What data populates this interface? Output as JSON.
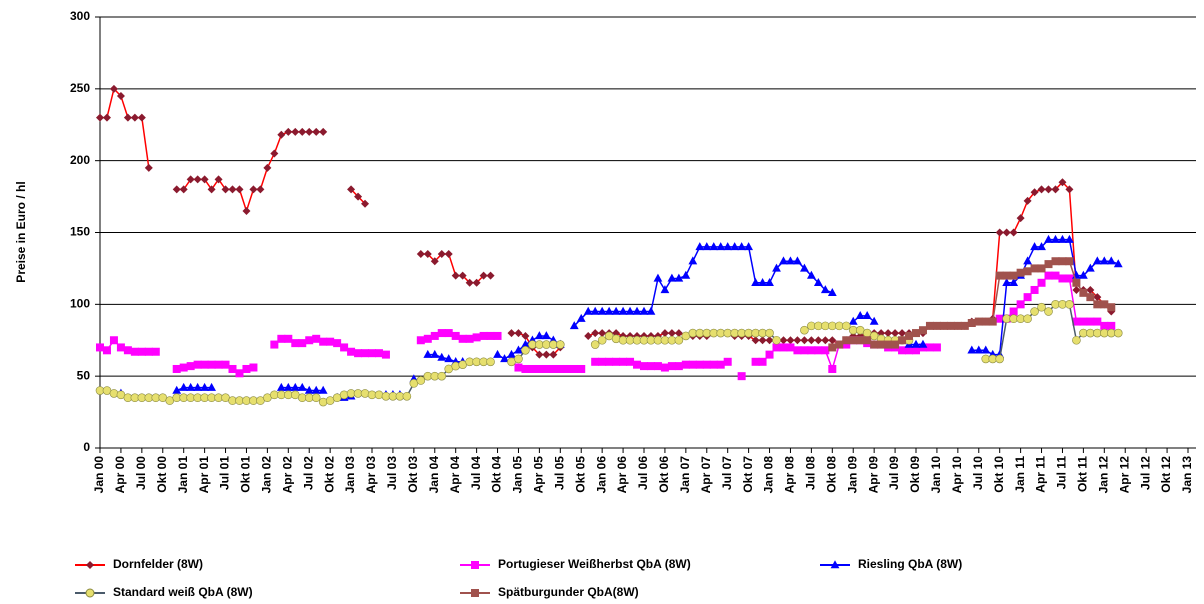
{
  "chart_data": {
    "type": "line",
    "ylabel": "Preise in Euro / hl",
    "ylim": [
      0,
      300
    ],
    "yticks": [
      0,
      50,
      100,
      150,
      200,
      250,
      300
    ],
    "grid": true,
    "legend": "bottom",
    "categories": [
      "Jan 00",
      null,
      null,
      "Apr 00",
      null,
      null,
      "Jul 00",
      null,
      null,
      "Okt 00",
      null,
      null,
      "Jan 01",
      null,
      null,
      "Apr 01",
      null,
      null,
      "Jul 01",
      null,
      null,
      "Okt 01",
      null,
      null,
      "Jan 02",
      null,
      null,
      "Apr 02",
      null,
      null,
      "Jul 02",
      null,
      null,
      "Okt 02",
      null,
      null,
      "Jan 03",
      null,
      null,
      "Apr 03",
      null,
      null,
      "Jul 03",
      null,
      null,
      "Okt 03",
      null,
      null,
      "Jan 04",
      null,
      null,
      "Apr 04",
      null,
      null,
      "Jul 04",
      null,
      null,
      "Okt 04",
      null,
      null,
      "Jan 05",
      null,
      null,
      "Apr 05",
      null,
      null,
      "Jul 05",
      null,
      null,
      "Okt 05",
      null,
      null,
      "Jan 06",
      null,
      null,
      "Apr 06",
      null,
      null,
      "Jul 06",
      null,
      null,
      "Okt 06",
      null,
      null,
      "Jan 07",
      null,
      null,
      "Apr 07",
      null,
      null,
      "Jul 07",
      null,
      null,
      "Okt 07",
      null,
      null,
      "Jan 08",
      null,
      null,
      "Apr 08",
      null,
      null,
      "Jul 08",
      null,
      null,
      "Okt 08",
      null,
      null,
      "Jan 09",
      null,
      null,
      "Apr 09",
      null,
      null,
      "Jul 09",
      null,
      null,
      "Okt 09",
      null,
      null,
      "Jan 10",
      null,
      null,
      "Apr 10",
      null,
      null,
      "Jul 10",
      null,
      null,
      "Okt 10",
      null,
      null,
      "Jan 11",
      null,
      null,
      "Apr 11",
      null,
      null,
      "Jul 11",
      null,
      null,
      "Okt 11",
      null,
      null,
      "Jan 12",
      null,
      null,
      "Apr 12",
      null,
      null,
      "Jul 12",
      null,
      null,
      "Okt 12",
      null,
      null,
      "Jan 13"
    ],
    "series": [
      {
        "name": "Dornfelder (8W)",
        "color": "#ff0000",
        "marker": "diamond",
        "marker_color": "#8b1a2e",
        "values": [
          230,
          230,
          250,
          245,
          230,
          230,
          230,
          195,
          null,
          null,
          null,
          180,
          180,
          187,
          187,
          187,
          180,
          187,
          180,
          180,
          180,
          165,
          180,
          180,
          195,
          205,
          218,
          220,
          220,
          220,
          220,
          220,
          220,
          null,
          null,
          null,
          180,
          175,
          170,
          null,
          null,
          null,
          null,
          null,
          null,
          null,
          135,
          135,
          130,
          135,
          135,
          120,
          120,
          115,
          115,
          120,
          120,
          null,
          null,
          80,
          80,
          78,
          70,
          65,
          65,
          65,
          70,
          null,
          null,
          null,
          78,
          80,
          80,
          80,
          80,
          78,
          78,
          78,
          78,
          78,
          78,
          80,
          80,
          80,
          78,
          78,
          78,
          78,
          80,
          80,
          80,
          78,
          78,
          78,
          75,
          75,
          75,
          75,
          75,
          75,
          75,
          75,
          75,
          75,
          75,
          75,
          72,
          75,
          78,
          78,
          80,
          80,
          80,
          80,
          80,
          80,
          80,
          80,
          80,
          85,
          85,
          85,
          85,
          85,
          85,
          88,
          88,
          88,
          90,
          150,
          150,
          150,
          160,
          172,
          178,
          180,
          180,
          180,
          185,
          180,
          110,
          110,
          110,
          105,
          100,
          95,
          null,
          null,
          null,
          null,
          null,
          null,
          null,
          null,
          null,
          null,
          null
        ]
      },
      {
        "name": "Portugieser Weißherbst QbA (8W)",
        "color": "#ff00ff",
        "marker": "square",
        "marker_color": "#ff00ff",
        "values": [
          70,
          68,
          75,
          70,
          68,
          67,
          67,
          67,
          67,
          null,
          null,
          55,
          56,
          57,
          58,
          58,
          58,
          58,
          58,
          55,
          52,
          55,
          56,
          null,
          null,
          72,
          76,
          76,
          73,
          73,
          75,
          76,
          74,
          74,
          73,
          70,
          67,
          66,
          66,
          66,
          66,
          65,
          null,
          null,
          null,
          null,
          75,
          76,
          78,
          80,
          80,
          78,
          76,
          76,
          77,
          78,
          78,
          78,
          null,
          null,
          56,
          55,
          55,
          55,
          55,
          55,
          55,
          55,
          55,
          55,
          null,
          60,
          60,
          60,
          60,
          60,
          60,
          58,
          57,
          57,
          57,
          56,
          57,
          57,
          58,
          58,
          58,
          58,
          58,
          58,
          60,
          null,
          50,
          null,
          60,
          60,
          65,
          70,
          70,
          70,
          68,
          68,
          68,
          68,
          68,
          55,
          72,
          72,
          75,
          75,
          73,
          72,
          72,
          70,
          70,
          68,
          68,
          68,
          70,
          70,
          70,
          null,
          null,
          null,
          null,
          null,
          null,
          null,
          null,
          90,
          90,
          95,
          100,
          105,
          110,
          115,
          120,
          120,
          118,
          118,
          88,
          88,
          88,
          88,
          85,
          85,
          null,
          null,
          null,
          null,
          null,
          null,
          null,
          null,
          null,
          null,
          null
        ]
      },
      {
        "name": "Riesling QbA (8W)",
        "color": "#0000ff",
        "marker": "triangle",
        "marker_color": "#0000ff",
        "values": [
          null,
          null,
          null,
          38,
          null,
          null,
          null,
          null,
          null,
          null,
          null,
          40,
          42,
          42,
          42,
          42,
          42,
          null,
          null,
          null,
          null,
          null,
          null,
          null,
          null,
          null,
          42,
          42,
          42,
          42,
          40,
          40,
          40,
          null,
          35,
          35,
          36,
          null,
          null,
          null,
          null,
          37,
          37,
          37,
          null,
          48,
          null,
          65,
          65,
          63,
          62,
          60,
          60,
          null,
          null,
          null,
          null,
          65,
          62,
          65,
          68,
          72,
          75,
          78,
          78,
          75,
          72,
          null,
          85,
          90,
          95,
          95,
          95,
          95,
          95,
          95,
          95,
          95,
          95,
          95,
          118,
          110,
          118,
          118,
          120,
          130,
          140,
          140,
          140,
          140,
          140,
          140,
          140,
          140,
          115,
          115,
          115,
          125,
          130,
          130,
          130,
          125,
          120,
          115,
          110,
          108,
          null,
          null,
          88,
          92,
          92,
          88,
          null,
          null,
          null,
          null,
          72,
          72,
          72,
          null,
          null,
          null,
          null,
          null,
          null,
          68,
          68,
          68,
          65,
          65,
          115,
          115,
          120,
          130,
          140,
          140,
          145,
          145,
          145,
          145,
          120,
          120,
          125,
          130,
          130,
          130,
          128,
          null,
          null,
          null,
          null,
          null,
          null,
          null,
          null,
          null,
          null
        ]
      },
      {
        "name": "Standard weiß QbA (8W)",
        "color": "#4a5a6a",
        "marker": "circle",
        "marker_color": "#e6df6e",
        "values": [
          40,
          40,
          38,
          37,
          35,
          35,
          35,
          35,
          35,
          35,
          33,
          35,
          35,
          35,
          35,
          35,
          35,
          35,
          35,
          33,
          33,
          33,
          33,
          33,
          35,
          37,
          37,
          37,
          37,
          35,
          35,
          35,
          32,
          33,
          35,
          37,
          38,
          38,
          38,
          37,
          37,
          36,
          36,
          36,
          36,
          45,
          47,
          50,
          50,
          50,
          55,
          57,
          58,
          60,
          60,
          60,
          60,
          null,
          null,
          60,
          62,
          68,
          72,
          72,
          72,
          72,
          72,
          null,
          null,
          null,
          null,
          72,
          75,
          78,
          76,
          75,
          75,
          75,
          75,
          75,
          75,
          75,
          75,
          75,
          78,
          80,
          80,
          80,
          80,
          80,
          80,
          80,
          80,
          80,
          80,
          80,
          80,
          75,
          null,
          null,
          null,
          82,
          85,
          85,
          85,
          85,
          85,
          85,
          82,
          82,
          80,
          78,
          76,
          75,
          75,
          75,
          75,
          null,
          null,
          null,
          null,
          null,
          null,
          null,
          null,
          null,
          null,
          62,
          62,
          62,
          90,
          90,
          90,
          90,
          95,
          98,
          95,
          100,
          100,
          100,
          75,
          80,
          80,
          80,
          80,
          80,
          80,
          null,
          null,
          null,
          null,
          null,
          null,
          null,
          null,
          null,
          null
        ]
      },
      {
        "name": "Spätburgunder QbA(8W)",
        "color": "#a0524d",
        "marker": "square",
        "marker_color": "#a0524d",
        "values": [
          null,
          null,
          null,
          null,
          null,
          null,
          null,
          null,
          null,
          null,
          null,
          null,
          null,
          null,
          null,
          null,
          null,
          null,
          null,
          null,
          null,
          null,
          null,
          null,
          null,
          null,
          null,
          null,
          null,
          null,
          null,
          null,
          null,
          null,
          null,
          null,
          null,
          null,
          null,
          null,
          null,
          null,
          null,
          null,
          null,
          null,
          null,
          null,
          null,
          null,
          null,
          null,
          null,
          null,
          null,
          null,
          null,
          null,
          null,
          null,
          null,
          null,
          null,
          null,
          null,
          null,
          null,
          null,
          null,
          null,
          null,
          null,
          null,
          null,
          null,
          null,
          null,
          null,
          null,
          null,
          null,
          null,
          null,
          null,
          null,
          null,
          null,
          null,
          null,
          null,
          null,
          null,
          null,
          null,
          null,
          null,
          null,
          null,
          null,
          null,
          null,
          null,
          null,
          null,
          null,
          70,
          72,
          75,
          75,
          75,
          75,
          72,
          72,
          72,
          72,
          75,
          78,
          80,
          82,
          85,
          85,
          85,
          85,
          85,
          85,
          87,
          88,
          88,
          88,
          120,
          120,
          120,
          122,
          123,
          125,
          125,
          128,
          130,
          130,
          130,
          115,
          108,
          105,
          100,
          100,
          98,
          null,
          null,
          null,
          null,
          null,
          null,
          null,
          null,
          null,
          null,
          null
        ]
      }
    ]
  }
}
